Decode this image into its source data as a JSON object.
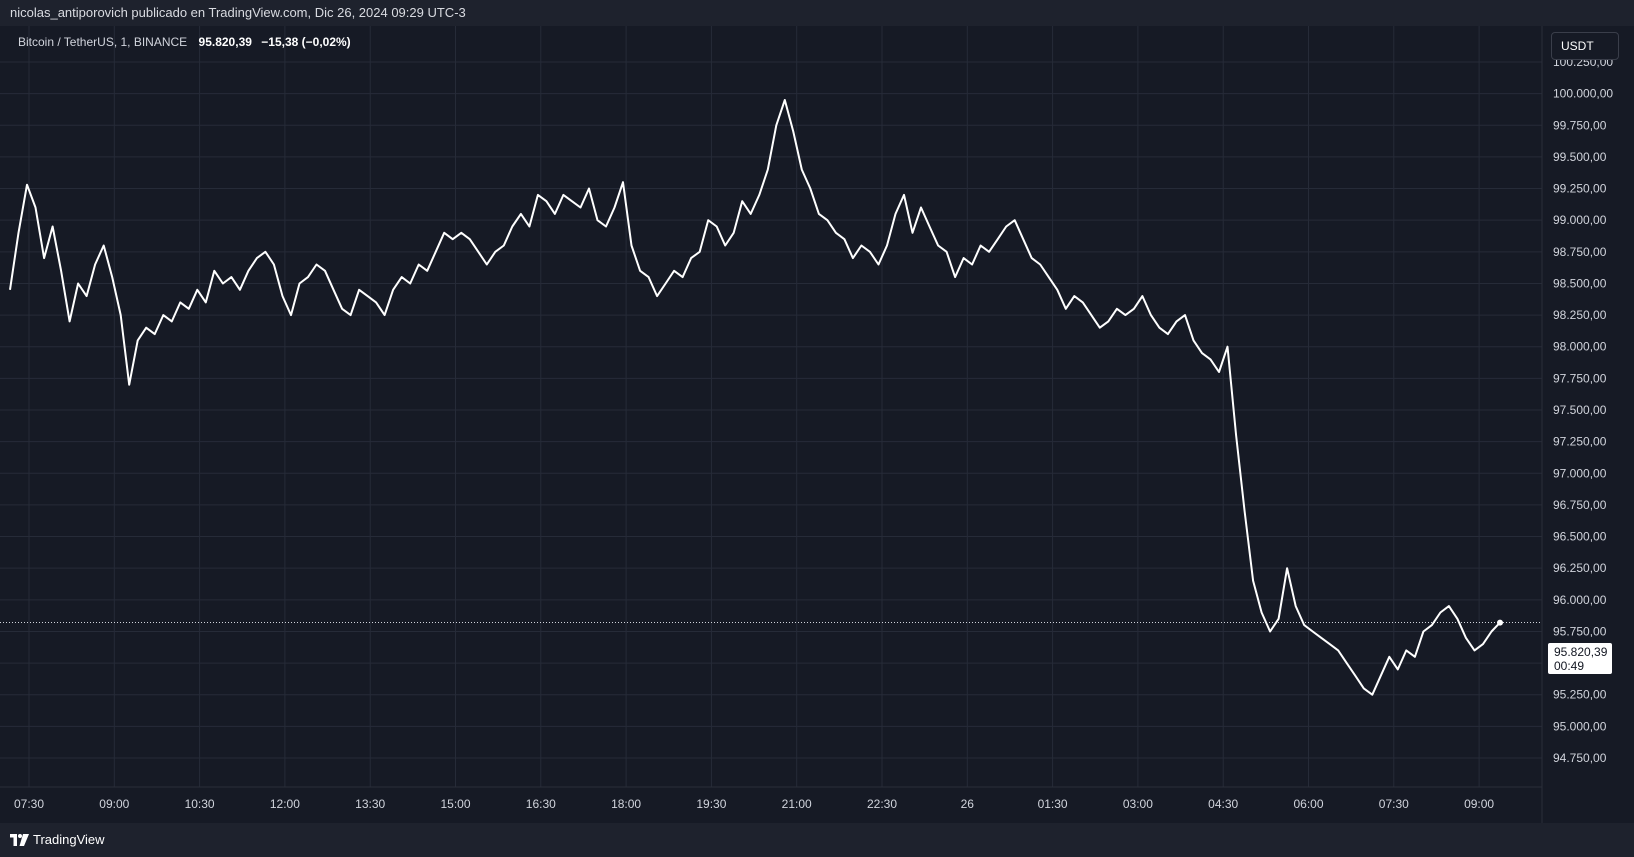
{
  "header": {
    "publisher_text": "nicolas_antiporovich publicado en TradingView.com, Dic 26, 2024 09:29 UTC-3"
  },
  "legend": {
    "symbol": "Bitcoin / TetherUS, 1, BINANCE",
    "price": "95.820,39",
    "change": "−15,38 (−0,02%)"
  },
  "currency_button": {
    "label": "USDT"
  },
  "price_tag": {
    "price": "95.820,39",
    "countdown": "00:49"
  },
  "footer": {
    "brand": "TradingView"
  },
  "colors": {
    "background": "#161a25",
    "grid": "#262b38",
    "line": "#ffffff",
    "axis_text": "#d1d4dc"
  },
  "chart_data": {
    "type": "line",
    "series": [
      {
        "values": [
          98450,
          98900,
          99280,
          99100,
          98700,
          98950,
          98600,
          98200,
          98500,
          98400,
          98650,
          98800,
          98550,
          98250,
          97700,
          98050,
          98150,
          98100,
          98250,
          98200,
          98350,
          98300,
          98450,
          98350,
          98600,
          98500,
          98550,
          98450,
          98600,
          98700,
          98750,
          98650,
          98400,
          98250,
          98500,
          98550,
          98650,
          98600,
          98450,
          98300,
          98250,
          98450,
          98400,
          98350,
          98250,
          98450,
          98550,
          98500,
          98650,
          98600,
          98750,
          98900,
          98850,
          98900,
          98850,
          98750,
          98650,
          98750,
          98800,
          98950,
          99050,
          98950,
          99200,
          99150,
          99050,
          99200,
          99150,
          99100,
          99250,
          99000,
          98950,
          99100,
          99300,
          98800,
          98600,
          98550,
          98400,
          98500,
          98600,
          98550,
          98700,
          98750,
          99000,
          98950,
          98800,
          98900,
          99150,
          99050,
          99200,
          99400,
          99750,
          99950,
          99700,
          99400,
          99250,
          99050,
          99000,
          98900,
          98850,
          98700,
          98800,
          98750,
          98650,
          98800,
          99050,
          99200,
          98900,
          99100,
          98950,
          98800,
          98750,
          98550,
          98700,
          98650,
          98800,
          98750,
          98850,
          98950,
          99000,
          98850,
          98700,
          98650,
          98550,
          98450,
          98300,
          98400,
          98350,
          98250,
          98150,
          98200,
          98300,
          98250,
          98300,
          98400,
          98250,
          98150,
          98100,
          98200,
          98250,
          98050,
          97950,
          97900,
          97800,
          98000,
          97300,
          96700,
          96150,
          95900,
          95750,
          95850,
          96250,
          95950,
          95800,
          95750,
          95700,
          95650,
          95600,
          95500,
          95400,
          95300,
          95250,
          95400,
          95550,
          95450,
          95600,
          95550,
          95750,
          95800,
          95900,
          95950,
          95850,
          95700,
          95600,
          95650,
          95750,
          95820
        ]
      }
    ],
    "x_tick_labels": [
      "07:30",
      "09:00",
      "10:30",
      "12:00",
      "13:30",
      "15:00",
      "16:30",
      "18:00",
      "19:30",
      "21:00",
      "22:30",
      "26",
      "01:30",
      "03:00",
      "04:30",
      "06:00",
      "07:30",
      "09:00"
    ],
    "y_ticks": [
      100250,
      100000,
      99750,
      99500,
      99250,
      99000,
      98750,
      98500,
      98250,
      98000,
      97750,
      97500,
      97250,
      97000,
      96750,
      96500,
      96250,
      96000,
      95750,
      95500,
      95250,
      95000,
      94750
    ],
    "y_tick_labels": [
      "100.250,00",
      "100.000,00",
      "99.750,00",
      "99.500,00",
      "99.250,00",
      "99.000,00",
      "98.750,00",
      "98.500,00",
      "98.250,00",
      "98.000,00",
      "97.750,00",
      "97.500,00",
      "97.250,00",
      "97.000,00",
      "96.750,00",
      "96.500,00",
      "96.250,00",
      "96.000,00",
      "95.750,00",
      "95.500,00",
      "95.250,00",
      "95.000,00",
      "94.750,00"
    ],
    "ylim": [
      94750,
      100250
    ],
    "last_price": 95820.39,
    "grid": true,
    "legend": "none"
  }
}
